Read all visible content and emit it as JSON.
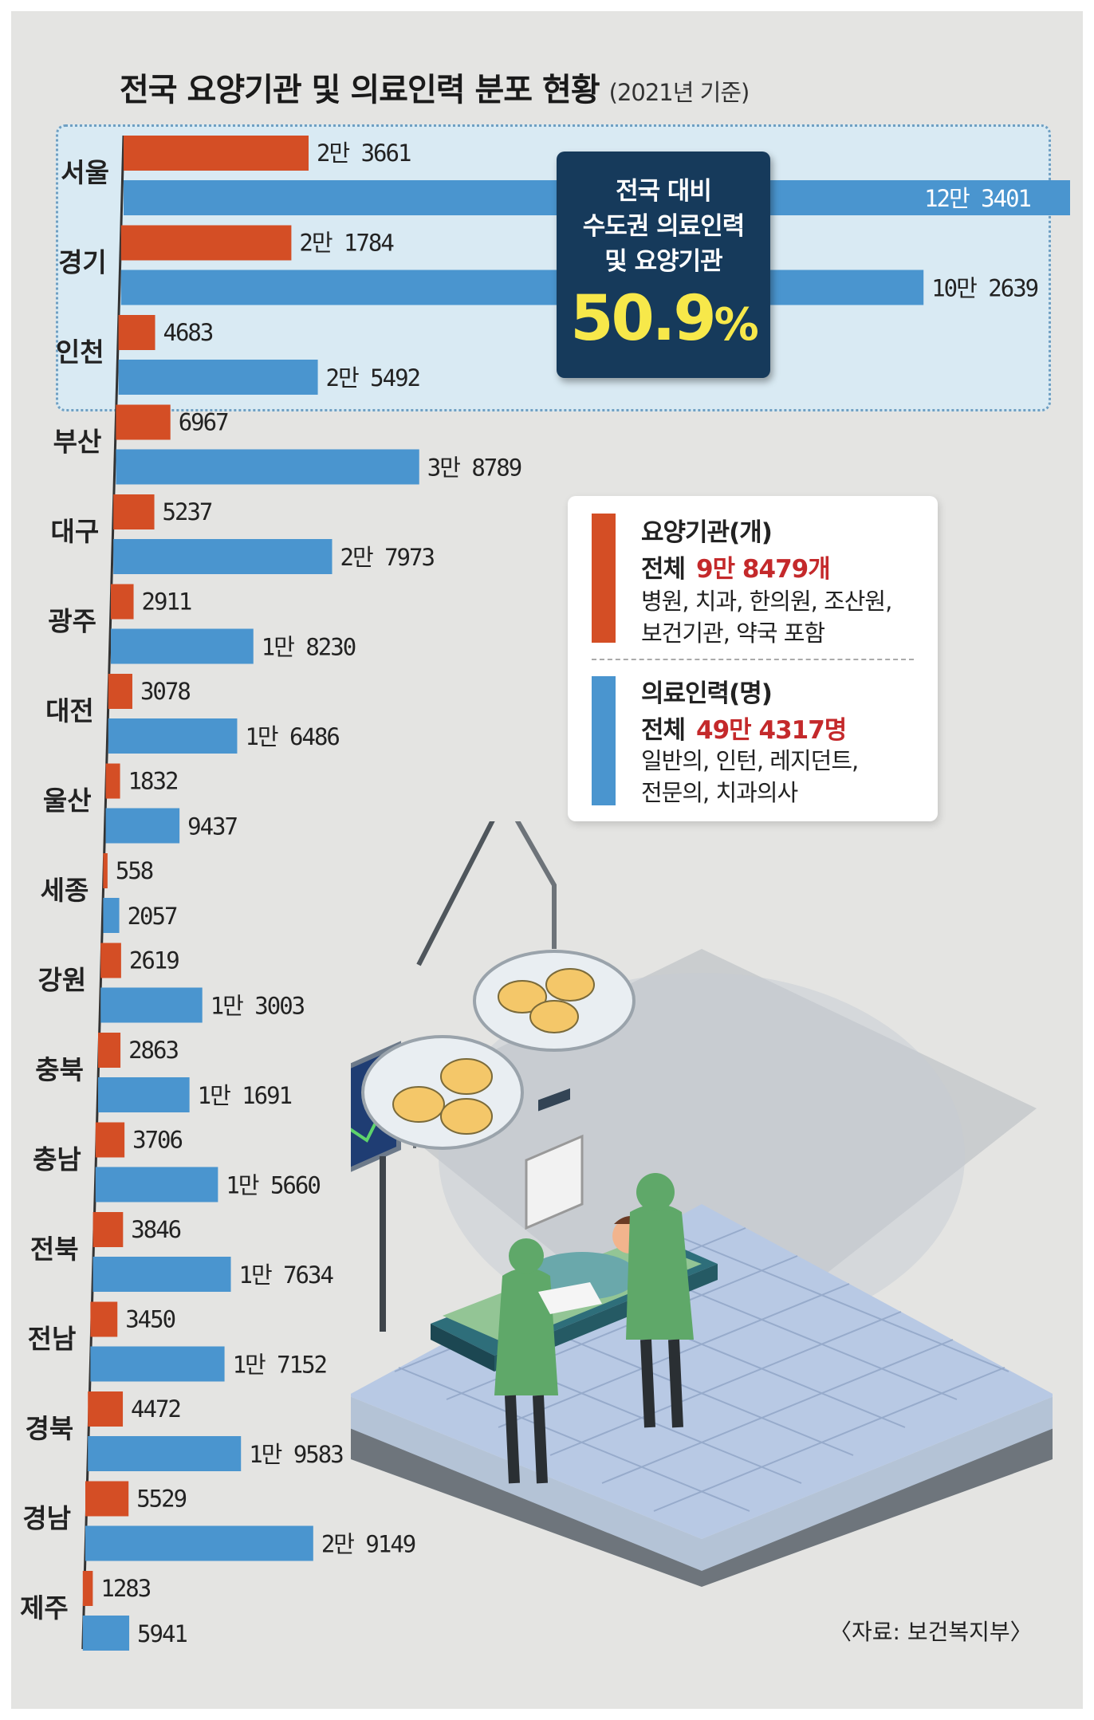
{
  "title": "전국 요양기관 및 의료인력 분포 현황",
  "subtitle": "(2021년 기준)",
  "callout": {
    "line1": "전국 대비",
    "line2": "수도권 의료인력",
    "line3": "및 요양기관",
    "value": "50.9",
    "unit": "%"
  },
  "legend": {
    "facilities": {
      "title": "요양기관(개)",
      "total_label": "전체",
      "total_value": "9만 8479개",
      "desc1": "병원, 치과, 한의원, 조산원,",
      "desc2": "보건기관, 약국 포함",
      "color": "#d44e25"
    },
    "personnel": {
      "title": "의료인력(명)",
      "total_label": "전체",
      "total_value": "49만 4317명",
      "desc1": "일반의, 인턴, 레지던트,",
      "desc2": "전문의, 치과의사",
      "color": "#4a95cf"
    }
  },
  "source": "〈자료: 보건복지부〉",
  "chart_data": {
    "type": "bar",
    "orientation": "horizontal",
    "categories": [
      "서울",
      "경기",
      "인천",
      "부산",
      "대구",
      "광주",
      "대전",
      "울산",
      "세종",
      "강원",
      "충북",
      "충남",
      "전북",
      "전남",
      "경북",
      "경남",
      "제주"
    ],
    "series": [
      {
        "name": "요양기관(개)",
        "color": "#d44e25",
        "values": [
          23661,
          21784,
          4683,
          6967,
          5237,
          2911,
          3078,
          1832,
          558,
          2619,
          2863,
          3706,
          3846,
          3450,
          4472,
          5529,
          1283
        ],
        "labels": [
          "2만 3661",
          "2만 1784",
          "4683",
          "6967",
          "5237",
          "2911",
          "3078",
          "1832",
          "558",
          "2619",
          "2863",
          "3706",
          "3846",
          "3450",
          "4472",
          "5529",
          "1283"
        ]
      },
      {
        "name": "의료인력(명)",
        "color": "#4a95cf",
        "values": [
          123401,
          102639,
          25492,
          38789,
          27973,
          18230,
          16486,
          9437,
          2057,
          13003,
          11691,
          15660,
          17634,
          17152,
          19583,
          29149,
          5941
        ],
        "labels": [
          "12만 3401",
          "10만 2639",
          "2만 5492",
          "3만 8789",
          "2만 7973",
          "1만 8230",
          "1만 6486",
          "9437",
          "2057",
          "1만 3003",
          "1만 1691",
          "1만 5660",
          "1만 7634",
          "1만 7152",
          "1만 9583",
          "2만 9149",
          "5941"
        ]
      }
    ],
    "highlight_group": [
      "서울",
      "경기",
      "인천"
    ]
  }
}
